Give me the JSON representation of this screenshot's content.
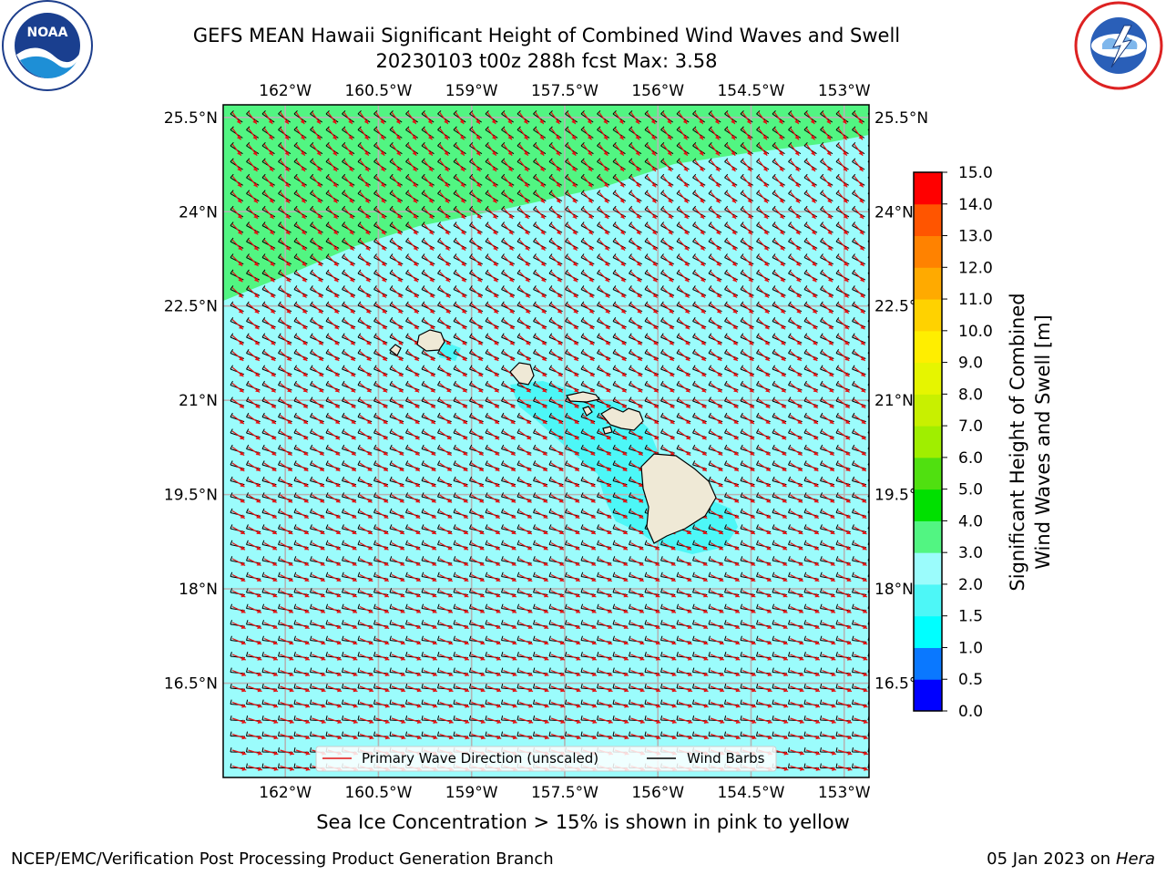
{
  "header": {
    "title_line1": "GEFS MEAN Hawaii Significant Height of Combined Wind Waves and Swell",
    "title_line2": "20230103 t00z 288h fcst   Max: 3.58"
  },
  "logos": {
    "noaa_text": "NOAA",
    "noaa_ring_text": "NATIONAL OCEANIC AND ATMOSPHERIC ADMINISTRATION · U.S. DEPARTMENT OF COMMERCE",
    "nws_ring_text": "NATIONAL WEATHER SERVICE"
  },
  "map": {
    "lon_labels": [
      "162°W",
      "160.5°W",
      "159°W",
      "157.5°W",
      "156°W",
      "154.5°W",
      "153°W"
    ],
    "lat_labels": [
      "25.5°N",
      "24°N",
      "22.5°N",
      "21°N",
      "19.5°N",
      "18°N",
      "16.5°N"
    ],
    "lon_range": [
      -163,
      -152.6
    ],
    "lat_range": [
      15,
      25.7
    ],
    "grid": true,
    "ocean_colors": {
      "low": "#9bfcfc",
      "mid": "#4df7f7",
      "high": "#52f582"
    },
    "land_color": "#efe9d6",
    "wave_arrow_color": "#e41515",
    "barb_color": "#000000",
    "legend": {
      "wave_label": "Primary Wave Direction (unscaled)",
      "barb_label": "Wind Barbs"
    }
  },
  "colorbar": {
    "label_line1": "Significant Height of Combined",
    "label_line2": "Wind Waves and Swell [m]",
    "bounds": [
      0.0,
      0.5,
      1.0,
      1.5,
      2.0,
      3.0,
      4.0,
      5.0,
      6.0,
      7.0,
      8.0,
      9.0,
      10.0,
      11.0,
      12.0,
      13.0,
      14.0,
      15.0
    ],
    "tick_labels": [
      "0.0",
      "0.5",
      "1.0",
      "1.5",
      "2.0",
      "3.0",
      "4.0",
      "5.0",
      "6.0",
      "7.0",
      "8.0",
      "9.0",
      "10.0",
      "11.0",
      "12.0",
      "13.0",
      "14.0",
      "15.0"
    ],
    "colors": [
      "#0000ff",
      "#0a78ff",
      "#00ffff",
      "#4df7f7",
      "#9bfcfc",
      "#52f582",
      "#00e000",
      "#50e010",
      "#a0ee00",
      "#c8f000",
      "#e6f500",
      "#ffee00",
      "#ffd200",
      "#ffaa00",
      "#ff8200",
      "#ff5500",
      "#ff0000"
    ]
  },
  "footer": {
    "note": "Sea Ice Concentration > 15% is shown in pink to yellow",
    "left": "NCEP/EMC/Verification Post Processing Product Generation Branch",
    "right_prefix": "05 Jan 2023 on ",
    "right_host": "Hera"
  }
}
